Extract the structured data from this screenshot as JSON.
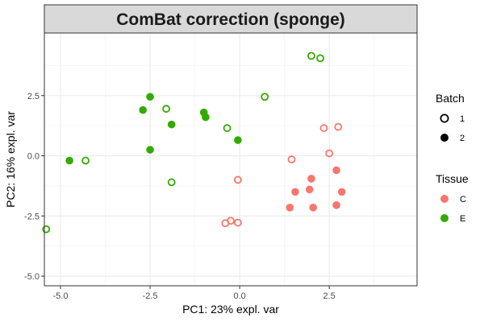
{
  "chart_data": {
    "type": "scatter",
    "title": "ComBat correction (sponge)",
    "xlabel": "PC1: 23% expl. var",
    "ylabel": "PC2: 16% expl. var",
    "xlim": [
      -5.45,
      4.95
    ],
    "ylim": [
      -5.4,
      5.1
    ],
    "x_ticks": [
      -5.0,
      -2.5,
      0.0,
      2.5
    ],
    "x_tick_labels": [
      "-5.0",
      "-2.5",
      "0.0",
      "2.5"
    ],
    "y_ticks": [
      -5.0,
      -2.5,
      0.0,
      2.5
    ],
    "y_tick_labels": [
      "-5.0",
      "-2.5",
      "0.0",
      "2.5"
    ],
    "grid": true,
    "legend_placement": "right",
    "legends": [
      {
        "title": "Batch",
        "kind": "shape",
        "entries": [
          {
            "label": "1",
            "shape": "open-circle"
          },
          {
            "label": "2",
            "shape": "filled-circle"
          }
        ]
      },
      {
        "title": "Tissue",
        "kind": "color",
        "entries": [
          {
            "label": "C",
            "color": "#F8766D"
          },
          {
            "label": "E",
            "color": "#33AA00"
          }
        ]
      }
    ],
    "points": [
      {
        "x": 2.0,
        "y": 4.15,
        "tissue": "E",
        "batch": "1"
      },
      {
        "x": 2.25,
        "y": 4.05,
        "tissue": "E",
        "batch": "1"
      },
      {
        "x": 0.7,
        "y": 2.45,
        "tissue": "E",
        "batch": "1"
      },
      {
        "x": -2.05,
        "y": 1.95,
        "tissue": "E",
        "batch": "1"
      },
      {
        "x": -0.35,
        "y": 1.15,
        "tissue": "E",
        "batch": "1"
      },
      {
        "x": -4.3,
        "y": -0.2,
        "tissue": "E",
        "batch": "1"
      },
      {
        "x": -1.9,
        "y": -1.1,
        "tissue": "E",
        "batch": "1"
      },
      {
        "x": -5.4,
        "y": -3.05,
        "tissue": "E",
        "batch": "1"
      },
      {
        "x": -2.5,
        "y": 2.45,
        "tissue": "E",
        "batch": "2"
      },
      {
        "x": -2.7,
        "y": 1.9,
        "tissue": "E",
        "batch": "2"
      },
      {
        "x": -1.0,
        "y": 1.8,
        "tissue": "E",
        "batch": "2"
      },
      {
        "x": -0.95,
        "y": 1.6,
        "tissue": "E",
        "batch": "2"
      },
      {
        "x": -1.9,
        "y": 1.3,
        "tissue": "E",
        "batch": "2"
      },
      {
        "x": -0.05,
        "y": 0.65,
        "tissue": "E",
        "batch": "2"
      },
      {
        "x": -2.5,
        "y": 0.25,
        "tissue": "E",
        "batch": "2"
      },
      {
        "x": -4.75,
        "y": -0.2,
        "tissue": "E",
        "batch": "2"
      },
      {
        "x": 2.35,
        "y": 1.15,
        "tissue": "C",
        "batch": "1"
      },
      {
        "x": 2.75,
        "y": 1.2,
        "tissue": "C",
        "batch": "1"
      },
      {
        "x": 2.5,
        "y": 0.1,
        "tissue": "C",
        "batch": "1"
      },
      {
        "x": 1.45,
        "y": -0.15,
        "tissue": "C",
        "batch": "1"
      },
      {
        "x": -0.05,
        "y": -1.0,
        "tissue": "C",
        "batch": "1"
      },
      {
        "x": -0.25,
        "y": -2.7,
        "tissue": "C",
        "batch": "1"
      },
      {
        "x": -0.4,
        "y": -2.8,
        "tissue": "C",
        "batch": "1"
      },
      {
        "x": -0.05,
        "y": -2.78,
        "tissue": "C",
        "batch": "1"
      },
      {
        "x": 2.7,
        "y": -0.6,
        "tissue": "C",
        "batch": "2"
      },
      {
        "x": 2.0,
        "y": -0.95,
        "tissue": "C",
        "batch": "2"
      },
      {
        "x": 1.95,
        "y": -1.4,
        "tissue": "C",
        "batch": "2"
      },
      {
        "x": 1.55,
        "y": -1.5,
        "tissue": "C",
        "batch": "2"
      },
      {
        "x": 2.85,
        "y": -1.5,
        "tissue": "C",
        "batch": "2"
      },
      {
        "x": 2.7,
        "y": -2.05,
        "tissue": "C",
        "batch": "2"
      },
      {
        "x": 2.05,
        "y": -2.15,
        "tissue": "C",
        "batch": "2"
      },
      {
        "x": 1.4,
        "y": -2.15,
        "tissue": "C",
        "batch": "2"
      }
    ]
  }
}
